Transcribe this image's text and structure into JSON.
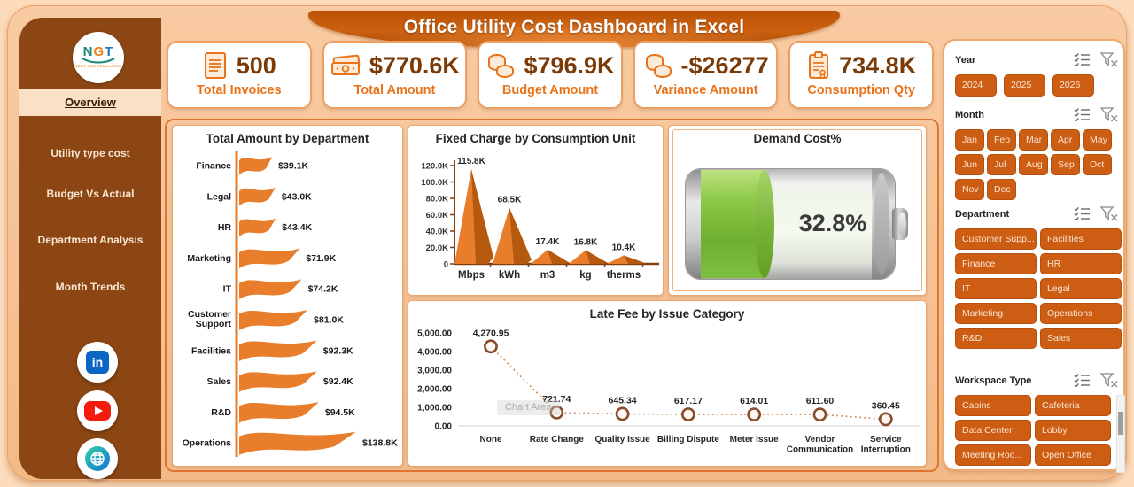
{
  "header": {
    "title": "Office Utility Cost Dashboard in Excel"
  },
  "logo": {
    "text": "NGT",
    "subtext": "NEXT GEN TEMPLATES"
  },
  "sidebar": {
    "items": [
      {
        "label": "Overview",
        "active": true
      },
      {
        "label": "Utility type cost",
        "active": false
      },
      {
        "label": "Budget Vs Actual",
        "active": false
      },
      {
        "label": "Department Analysis",
        "active": false
      },
      {
        "label": "Month Trends",
        "active": false
      }
    ],
    "social": [
      "linkedin",
      "youtube",
      "website"
    ]
  },
  "kpis": [
    {
      "icon": "invoice",
      "value": "500",
      "label": "Total Invoices"
    },
    {
      "icon": "cash",
      "value": "$770.6K",
      "label": "Total Amount"
    },
    {
      "icon": "coins",
      "value": "$796.9K",
      "label": "Budget Amount"
    },
    {
      "icon": "coins",
      "value": "-$26277",
      "label": "Variance Amount"
    },
    {
      "icon": "clipboard",
      "value": "734.8K",
      "label": "Consumption Qty"
    }
  ],
  "chart_data": [
    {
      "id": "dept",
      "type": "bar",
      "orientation": "horizontal",
      "marker": "flag",
      "title": "Total Amount by Department",
      "categories": [
        "Finance",
        "Legal",
        "HR",
        "Marketing",
        "IT",
        "Customer Support",
        "Facilities",
        "Sales",
        "R&D",
        "Operations"
      ],
      "values": [
        39.1,
        43.0,
        43.4,
        71.9,
        74.2,
        81.0,
        92.3,
        92.4,
        94.5,
        138.8
      ],
      "labels": [
        "$39.1K",
        "$43.0K",
        "$43.4K",
        "$71.9K",
        "$74.2K",
        "$81.0K",
        "$92.3K",
        "$92.4K",
        "$94.5K",
        "$138.8K"
      ],
      "unit": "K USD",
      "grid": false
    },
    {
      "id": "fixed",
      "type": "bar",
      "marker": "pyramid",
      "title": "Fixed Charge by Consumption Unit",
      "categories": [
        "Mbps",
        "kWh",
        "m3",
        "kg",
        "therms"
      ],
      "values": [
        115800,
        68500,
        17400,
        16800,
        10400
      ],
      "labels": [
        "115.8K",
        "68.5K",
        "17.4K",
        "16.8K",
        "10.4K"
      ],
      "ylim": [
        0,
        120000
      ],
      "yticks": [
        "0",
        "20.0K",
        "40.0K",
        "60.0K",
        "80.0K",
        "100.0K",
        "120.0K"
      ],
      "grid": false
    },
    {
      "id": "demand",
      "type": "gauge",
      "style": "battery",
      "title": "Demand Cost%",
      "value": 32.8,
      "label": "32.8%"
    },
    {
      "id": "latefee",
      "type": "line",
      "line_style": "dotted",
      "title": "Late Fee by Issue Category",
      "categories": [
        "None",
        "Rate Change",
        "Quality Issue",
        "Billing Dispute",
        "Meter Issue",
        "Vendor Communication",
        "Service Interruption"
      ],
      "values": [
        4270.95,
        721.74,
        645.34,
        617.17,
        614.01,
        611.6,
        360.45
      ],
      "labels": [
        "4,270.95",
        "721.74",
        "645.34",
        "617.17",
        "614.01",
        "611.60",
        "360.45"
      ],
      "ylim": [
        0,
        5000
      ],
      "yticks": [
        "0.00",
        "1,000.00",
        "2,000.00",
        "3,000.00",
        "4,000.00",
        "5,000.00"
      ],
      "annotation": "Chart Area",
      "grid": false
    }
  ],
  "slicers": [
    {
      "name": "Year",
      "columns": 3,
      "items": [
        "2024",
        "2025",
        "2026"
      ],
      "scrollbar": false
    },
    {
      "name": "Month",
      "columns": 5,
      "items": [
        "Jan",
        "Feb",
        "Mar",
        "Apr",
        "May",
        "Jun",
        "Jul",
        "Aug",
        "Sep",
        "Oct",
        "Nov",
        "Dec"
      ],
      "scrollbar": false
    },
    {
      "name": "Department",
      "columns": 2,
      "items": [
        "Customer Supp...",
        "Facilities",
        "Finance",
        "HR",
        "IT",
        "Legal",
        "Marketing",
        "Operations",
        "R&D",
        "Sales"
      ],
      "scrollbar": false
    },
    {
      "name": "Workspace Type",
      "columns": 2,
      "items": [
        "Cabins",
        "Cafeteria",
        "Data Center",
        "Lobby",
        "Meeting Roo...",
        "Open Office"
      ],
      "scrollbar": true
    }
  ],
  "colors": {
    "accent": "#E8731A",
    "chart_orange": "#E87D2B",
    "chart_orange_dark": "#B5590F",
    "sidebar_brown": "#8C4614",
    "slicer_button": "#CE5D14",
    "battery_green": "#7FBF3F",
    "kpi_value": "#7A3905",
    "axis_brown": "#7F3F10",
    "marker_ring": "#8A4B2C",
    "dotted_line": "#C98A55"
  }
}
